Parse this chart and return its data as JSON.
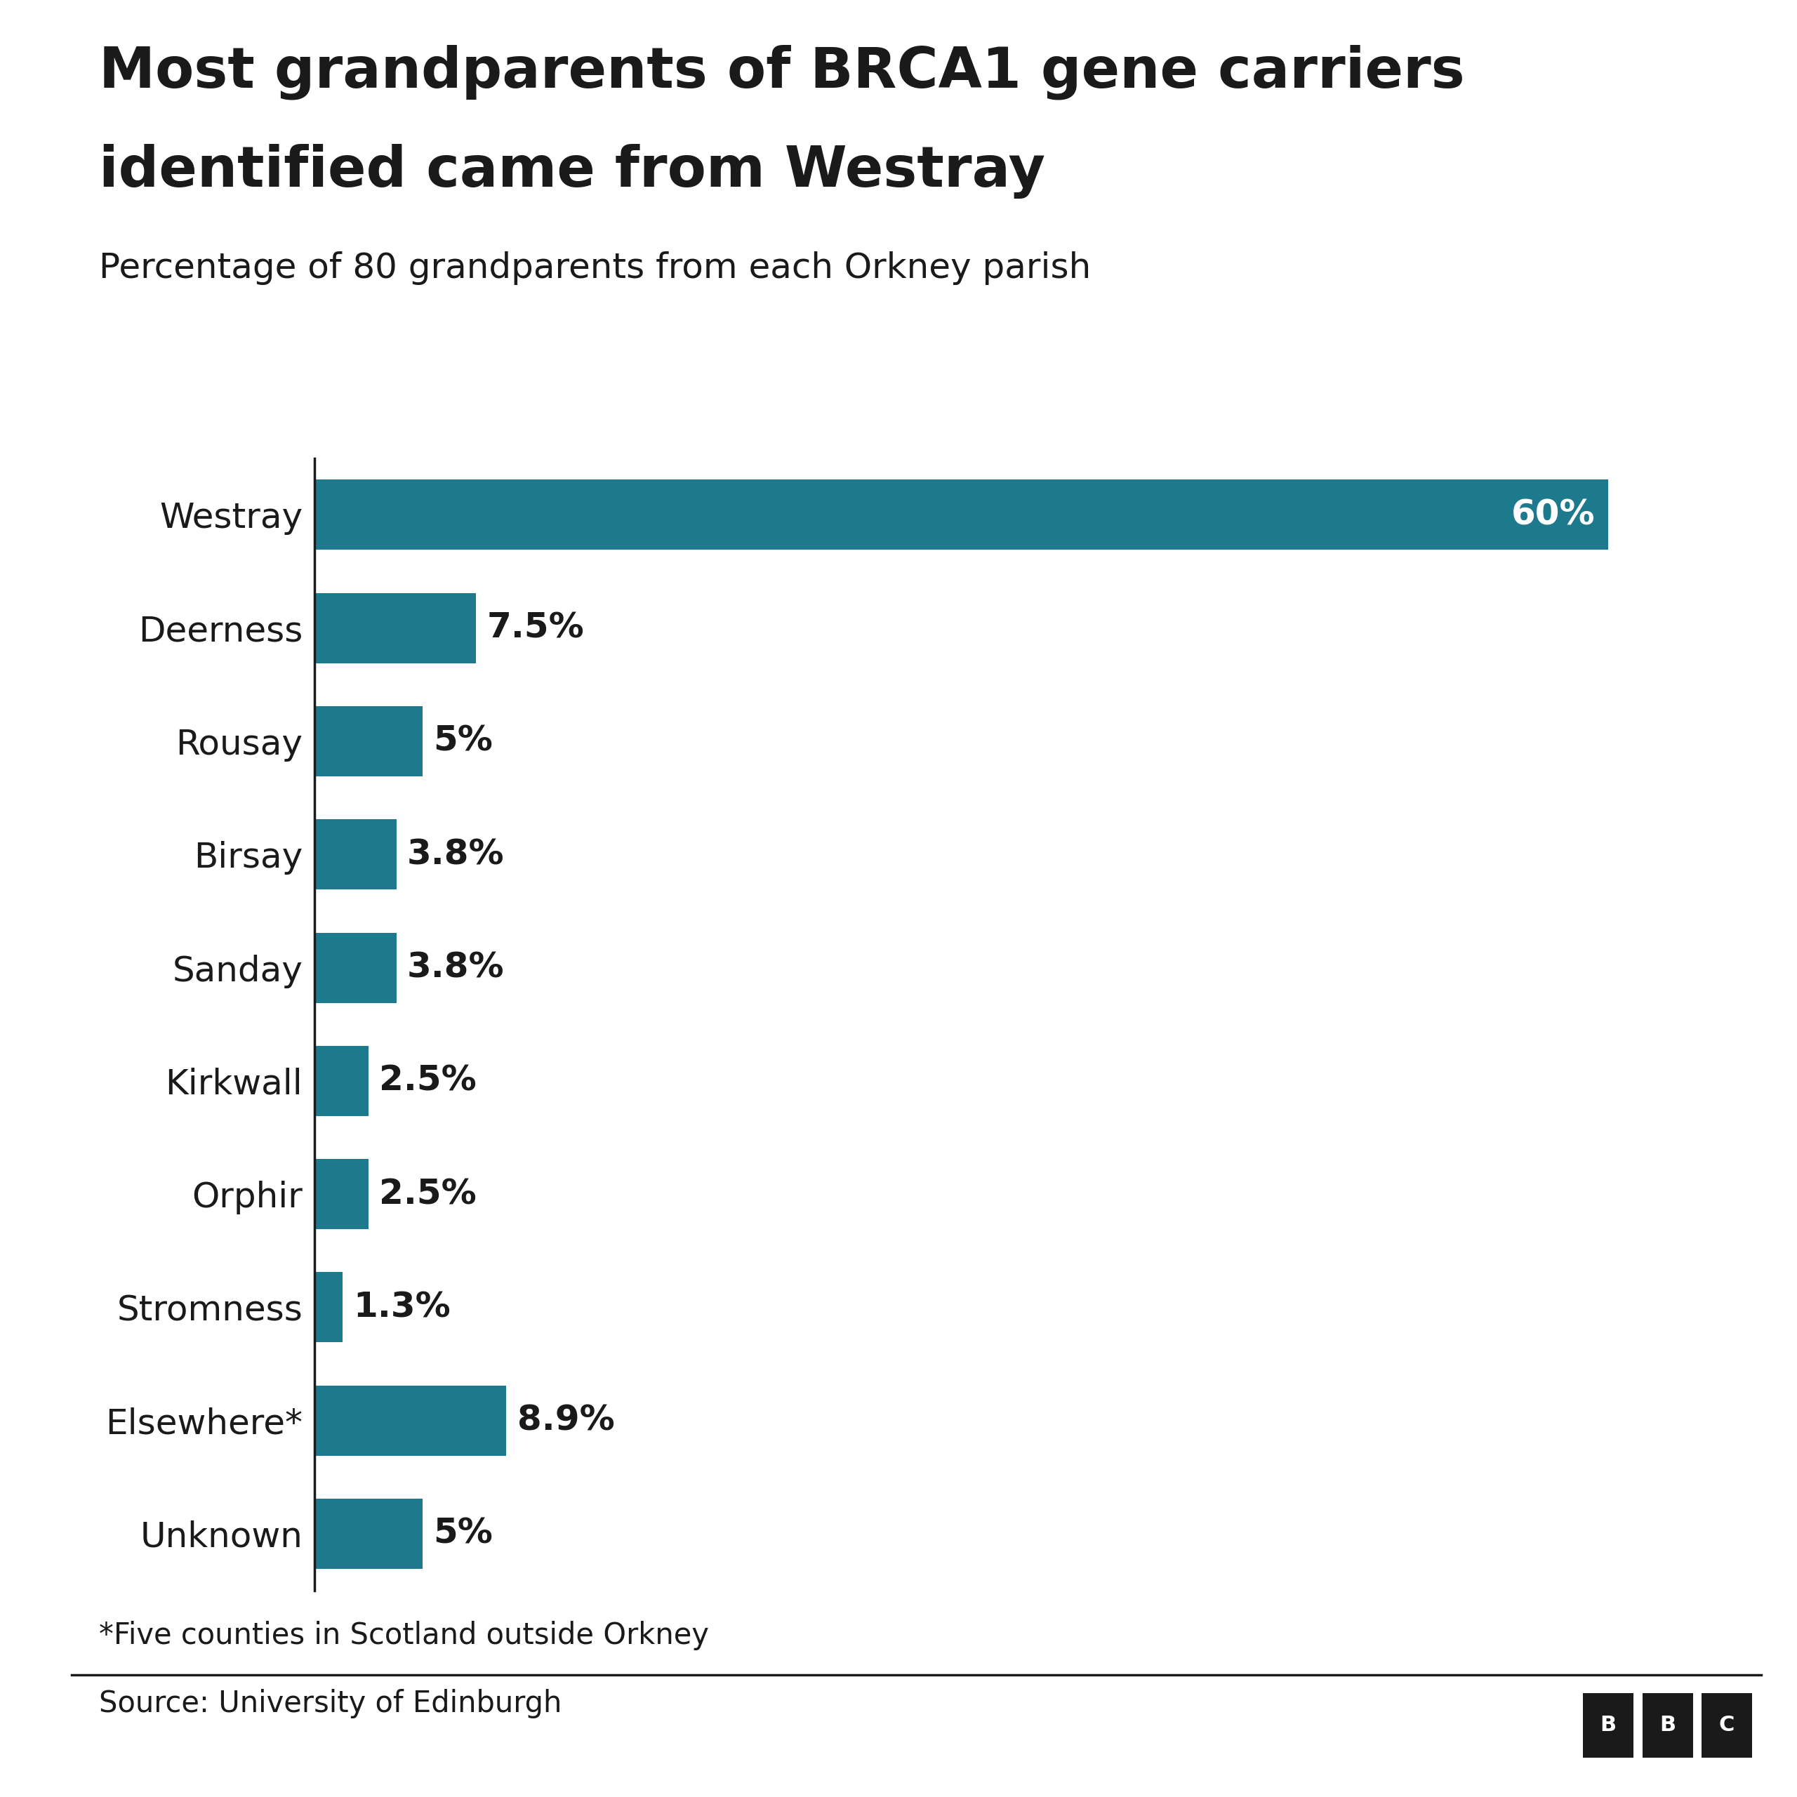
{
  "title_line1": "Most grandparents of BRCA1 gene carriers",
  "title_line2": "identified came from Westray",
  "subtitle": "Percentage of 80 grandparents from each Orkney parish",
  "categories": [
    "Westray",
    "Deerness",
    "Rousay",
    "Birsay",
    "Sanday",
    "Kirkwall",
    "Orphir",
    "Stromness",
    "Elsewhere*",
    "Unknown"
  ],
  "values": [
    60,
    7.5,
    5,
    3.8,
    3.8,
    2.5,
    2.5,
    1.3,
    8.9,
    5
  ],
  "labels": [
    "60%",
    "7.5%",
    "5%",
    "3.8%",
    "3.8%",
    "2.5%",
    "2.5%",
    "1.3%",
    "8.9%",
    "5%"
  ],
  "bar_color": "#1d7a8c",
  "label_color_westray": "#ffffff",
  "label_color_others": "#1a1a1a",
  "footnote": "*Five counties in Scotland outside Orkney",
  "source": "Source: University of Edinburgh",
  "background_color": "#ffffff",
  "title_fontsize": 58,
  "subtitle_fontsize": 36,
  "label_fontsize": 36,
  "tick_fontsize": 36,
  "footnote_fontsize": 30,
  "source_fontsize": 30,
  "xlim": [
    0,
    65
  ]
}
